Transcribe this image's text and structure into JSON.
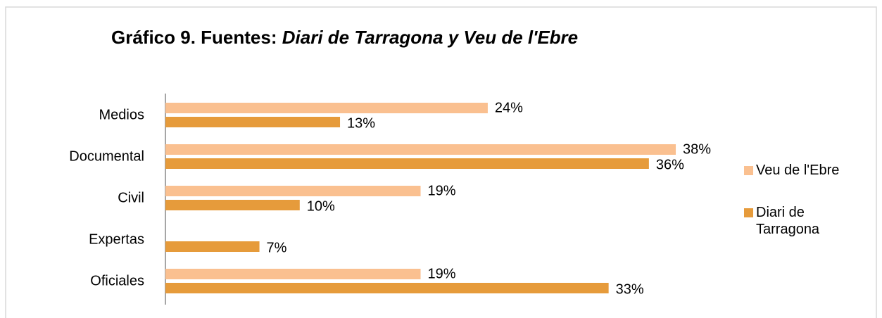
{
  "chart_data": {
    "type": "bar",
    "orientation": "horizontal",
    "title": "Gráfico 9. Fuentes:",
    "title_source": "Diari de Tarragona y Veu de l'Ebre",
    "categories": [
      "Medios",
      "Documental",
      "Civil",
      "Expertas",
      "Oficiales"
    ],
    "series": [
      {
        "name": "Veu de l'Ebre",
        "color": "#fac090",
        "values": [
          24,
          38,
          19,
          null,
          19
        ],
        "value_labels": [
          "24%",
          "38%",
          "19%",
          null,
          "19%"
        ]
      },
      {
        "name": "Diari de Tarragona",
        "color": "#e69b3b",
        "values": [
          13,
          36,
          10,
          7,
          33
        ],
        "value_labels": [
          "13%",
          "36%",
          "10%",
          "7%",
          "33%"
        ]
      }
    ],
    "legend": "right"
  }
}
